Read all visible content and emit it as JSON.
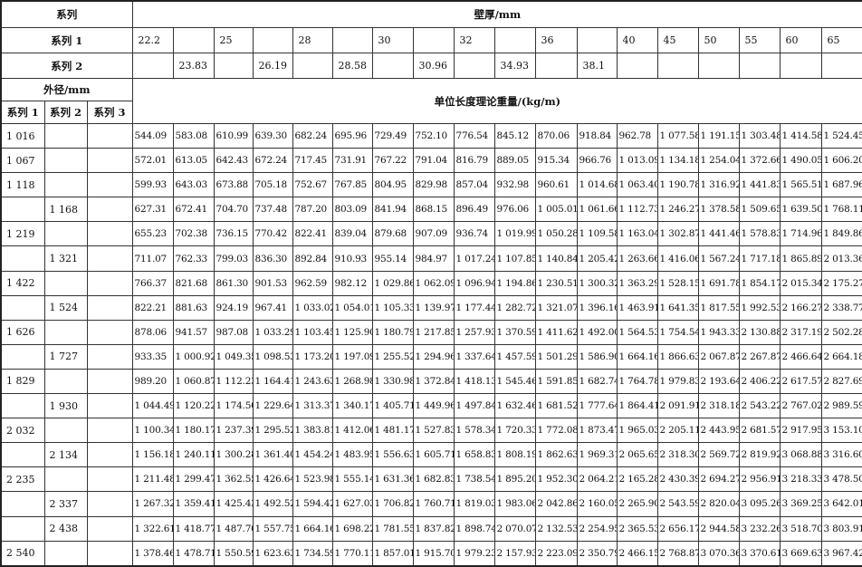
{
  "header": {
    "series_label": "系列",
    "wall_thickness_label": "壁厚/mm",
    "series1_label": "系列 1",
    "series2_label": "系列 2",
    "outer_diameter_label": "外径/mm",
    "weight_label": "单位长度理论重量/(kg/m)",
    "od_series": [
      "系列 1",
      "系列 2",
      "系列 3"
    ],
    "thickness_series1": [
      "22.2",
      "",
      "25",
      "",
      "28",
      "",
      "30",
      "",
      "32",
      "",
      "36",
      "",
      "40",
      "45",
      "50",
      "55",
      "60",
      "65"
    ],
    "thickness_series2": [
      "",
      "23.83",
      "",
      "26.19",
      "",
      "28.58",
      "",
      "30.96",
      "",
      "34.93",
      "",
      "38.1",
      "",
      "",
      "",
      "",
      "",
      ""
    ]
  },
  "rows": [
    {
      "s1": "1 016",
      "s2": "",
      "s3": "",
      "values": [
        "544.09",
        "583.08",
        "610.99",
        "639.30",
        "682.24",
        "695.96",
        "729.49",
        "752.10",
        "776.54",
        "845.12",
        "870.06",
        "918.84",
        "962.78",
        "1 077.58",
        "1 191.15",
        "1 303.48",
        "1 414.58",
        "1 524.45"
      ]
    },
    {
      "s1": "1 067",
      "s2": "",
      "s3": "",
      "values": [
        "572.01",
        "613.05",
        "642.43",
        "672.24",
        "717.45",
        "731.91",
        "767.22",
        "791.04",
        "816.79",
        "889.05",
        "915.34",
        "966.76",
        "1 013.09",
        "1 134.18",
        "1 254.04",
        "1 372.66",
        "1 490.05",
        "1 606.20"
      ]
    },
    {
      "s1": "1 118",
      "s2": "",
      "s3": "",
      "values": [
        "599.93",
        "643.03",
        "673.88",
        "705.18",
        "752.67",
        "767.85",
        "804.95",
        "829.98",
        "857.04",
        "932.98",
        "960.61",
        "1 014.68",
        "1 063.40",
        "1 190.78",
        "1 316.92",
        "1 441.83",
        "1 565.51",
        "1 687.96"
      ]
    },
    {
      "s1": "",
      "s2": "1 168",
      "s3": "",
      "values": [
        "627.31",
        "672.41",
        "704.70",
        "737.48",
        "787.20",
        "803.09",
        "841.94",
        "868.15",
        "896.49",
        "976.06",
        "1 005.01",
        "1 061.66",
        "1 112.73",
        "1 246.27",
        "1 378.58",
        "1 509.65",
        "1 639.50",
        "1 768.11"
      ]
    },
    {
      "s1": "1 219",
      "s2": "",
      "s3": "",
      "values": [
        "655.23",
        "702.38",
        "736.15",
        "770.42",
        "822.41",
        "839.04",
        "879.68",
        "907.09",
        "936.74",
        "1 019.99",
        "1 050.28",
        "1 109.58",
        "1 163.04",
        "1 302.87",
        "1 441.46",
        "1 578.83",
        "1 714.96",
        "1 849.86"
      ]
    },
    {
      "s1": "",
      "s2": "1 321",
      "s3": "",
      "values": [
        "711.07",
        "762.33",
        "799.03",
        "836.30",
        "892.84",
        "910.93",
        "955.14",
        "984.97",
        "1 017.24",
        "1 107.85",
        "1 140.84",
        "1 205.42",
        "1 263.66",
        "1 416.06",
        "1 567.24",
        "1 717.18",
        "1 865.89",
        "2 013.36"
      ]
    },
    {
      "s1": "1 422",
      "s2": "",
      "s3": "",
      "values": [
        "766.37",
        "821.68",
        "861.30",
        "901.53",
        "962.59",
        "982.12",
        "1 029.86",
        "1 062.09",
        "1 096.94",
        "1 194.86",
        "1 230.51",
        "1 300.32",
        "1 363.29",
        "1 528.15",
        "1 691.78",
        "1 854.17",
        "2 015.34",
        "2 175.27"
      ]
    },
    {
      "s1": "",
      "s2": "1 524",
      "s3": "",
      "values": [
        "822.21",
        "881.63",
        "924.19",
        "967.41",
        "1 033.02",
        "1 054.01",
        "1 105.33",
        "1 139.97",
        "1 177.44",
        "1 282.72",
        "1 321.07",
        "1 396.16",
        "1 463.91",
        "1 641.35",
        "1 817.55",
        "1 992.53",
        "2 166.27",
        "2 338.77"
      ]
    },
    {
      "s1": "1 626",
      "s2": "",
      "s3": "",
      "values": [
        "878.06",
        "941.57",
        "987.08",
        "1 033.29",
        "1 103.45",
        "1 125.90",
        "1 180.79",
        "1 217.85",
        "1 257.93",
        "1 370.59",
        "1 411.62",
        "1 492.00",
        "1 564.53",
        "1 754.54",
        "1 943.33",
        "2 130.88",
        "2 317.19",
        "2 502.28"
      ]
    },
    {
      "s1": "",
      "s2": "1 727",
      "s3": "",
      "values": [
        "933.35",
        "1 000.92",
        "1 049.35",
        "1 098.53",
        "1 173.20",
        "1 197.09",
        "1 255.52",
        "1 294.96",
        "1 337.64",
        "1 457.59",
        "1 501.29",
        "1 586.90",
        "1 664.16",
        "1 866.63",
        "2 067.87",
        "2 267.87",
        "2 466.64",
        "2 664.18"
      ]
    },
    {
      "s1": "1 829",
      "s2": "",
      "s3": "",
      "values": [
        "989.20",
        "1 060.87",
        "1 112.23",
        "1 164.41",
        "1 243.63",
        "1 268.98",
        "1 330.98",
        "1 372.84",
        "1 418.13",
        "1 545.46",
        "1 591.85",
        "1 682.74",
        "1 764.78",
        "1 979.83",
        "2 193.64",
        "2 406.22",
        "2 617.57",
        "2 827.69"
      ]
    },
    {
      "s1": "",
      "s2": "1 930",
      "s3": "",
      "values": [
        "1 044.49",
        "1 120.22",
        "1 174.50",
        "1 229.64",
        "1 313.37",
        "1 340.17",
        "1 405.71",
        "1 449.96",
        "1 497.84",
        "1 632.46",
        "1 681.52",
        "1 777.64",
        "1 864.41",
        "2 091.91",
        "2 318.18",
        "2 543.22",
        "2 767.02",
        "2 989.59"
      ]
    },
    {
      "s1": "2 032",
      "s2": "",
      "s3": "",
      "values": [
        "1 100.34",
        "1 180.17",
        "1 237.39",
        "1 295.52",
        "1 383.81",
        "1 412.06",
        "1 481.17",
        "1 527.83",
        "1 578.34",
        "1 720.33",
        "1 772.08",
        "1 873.47",
        "1 965.03",
        "2 205.11",
        "2 443.95",
        "2 681.57",
        "2 917.95",
        "3 153.10"
      ]
    },
    {
      "s1": "",
      "s2": "2 134",
      "s3": "",
      "values": [
        "1 156.18",
        "1 240.11",
        "1 300.28",
        "1 361.40",
        "1 454.24",
        "1 483.95",
        "1 556.63",
        "1 605.71",
        "1 658.83",
        "1 808.19",
        "1 862.63",
        "1 969.31",
        "2 065.65",
        "2 318.30",
        "2 569.72",
        "2 819.92",
        "3 068.88",
        "3 316.60"
      ]
    },
    {
      "s1": "2 235",
      "s2": "",
      "s3": "",
      "values": [
        "1 211.48",
        "1 299.47",
        "1 362.55",
        "1 426.64",
        "1 523.98",
        "1 555.14",
        "1 631.36",
        "1 682.83",
        "1 738.54",
        "1 895.20",
        "1 952.30",
        "2 064.21",
        "2 165.28",
        "2 430.39",
        "2 694.27",
        "2 956.91",
        "3 218.33",
        "3 478.50"
      ]
    },
    {
      "s1": "",
      "s2": "2 337",
      "s3": "",
      "values": [
        "1 267.32",
        "1 359.41",
        "1 425.43",
        "1 492.52",
        "1 594.42",
        "1 627.03",
        "1 706.82",
        "1 760.71",
        "1 819.03",
        "1 983.06",
        "2 042.86",
        "2 160.05",
        "2 265.90",
        "2 543.59",
        "2 820.04",
        "3 095.26",
        "3 369.25",
        "3 642.01"
      ]
    },
    {
      "s1": "",
      "s2": "2 438",
      "s3": "",
      "values": [
        "1 322.61",
        "1 418.77",
        "1 487.70",
        "1 557.75",
        "1 664.16",
        "1 698.22",
        "1 781.55",
        "1 837.82",
        "1 898.74",
        "2 070.07",
        "2 132.53",
        "2 254.95",
        "2 365.53",
        "2 656.17",
        "2 944.58",
        "3 232.26",
        "3 518.70",
        "3 803.91"
      ]
    },
    {
      "s1": "2 540",
      "s2": "",
      "s3": "",
      "values": [
        "1 378.46",
        "1 478.71",
        "1 550.59",
        "1 623.63",
        "1 734.59",
        "1 770.11",
        "1 857.01",
        "1 915.70",
        "1 979.23",
        "2 157.93",
        "2 223.09",
        "2 350.79",
        "2 466.15",
        "2 768.87",
        "3 070.36",
        "3 370.61",
        "3 669.63",
        "3 967.42"
      ]
    }
  ]
}
